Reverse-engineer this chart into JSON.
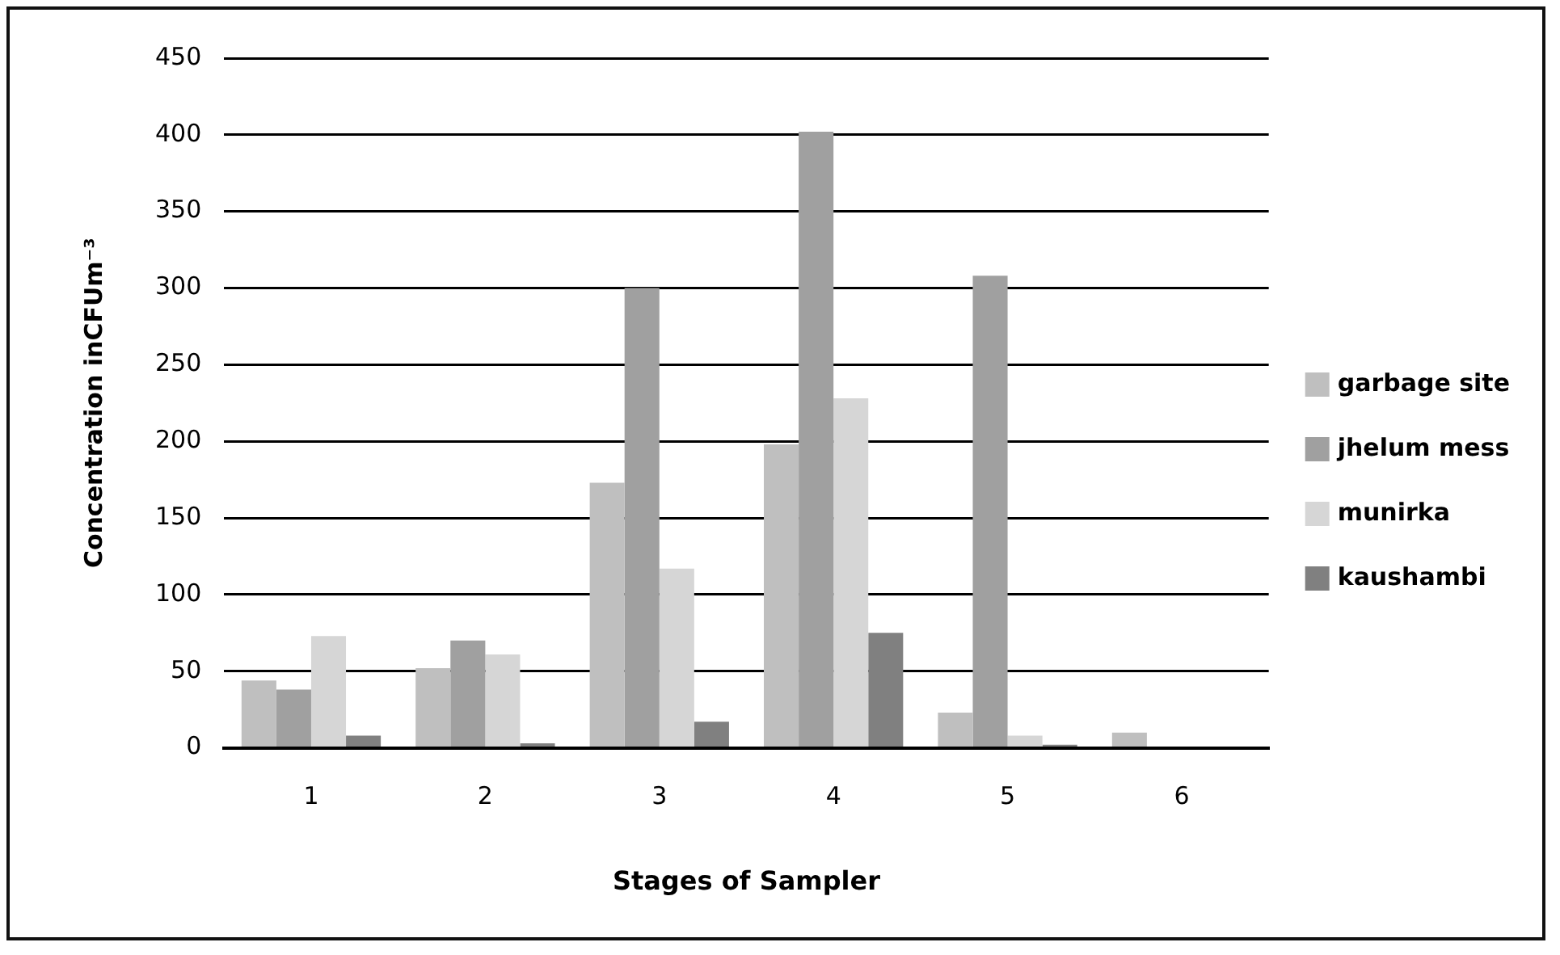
{
  "chart_data": {
    "type": "bar",
    "xlabel": "Stages of Sampler",
    "ylabel": "Concentration inCFUm⁻³",
    "categories": [
      "1",
      "2",
      "3",
      "4",
      "5",
      "6"
    ],
    "series": [
      {
        "name": "garbage site",
        "color": "#bfbfbf",
        "values": [
          44,
          52,
          173,
          198,
          23,
          10
        ]
      },
      {
        "name": "jhelum mess",
        "color": "#a0a0a0",
        "values": [
          38,
          70,
          300,
          402,
          308,
          null
        ]
      },
      {
        "name": "munirka",
        "color": "#d6d6d6",
        "values": [
          73,
          61,
          117,
          228,
          8,
          0
        ]
      },
      {
        "name": "kaushambi",
        "color": "#808080",
        "values": [
          8,
          3,
          17,
          75,
          2,
          0
        ]
      }
    ],
    "ylim": [
      0,
      450
    ],
    "yticks": [
      0,
      50,
      100,
      150,
      200,
      250,
      300,
      350,
      400,
      450
    ],
    "grid": "y",
    "legend": "right"
  }
}
